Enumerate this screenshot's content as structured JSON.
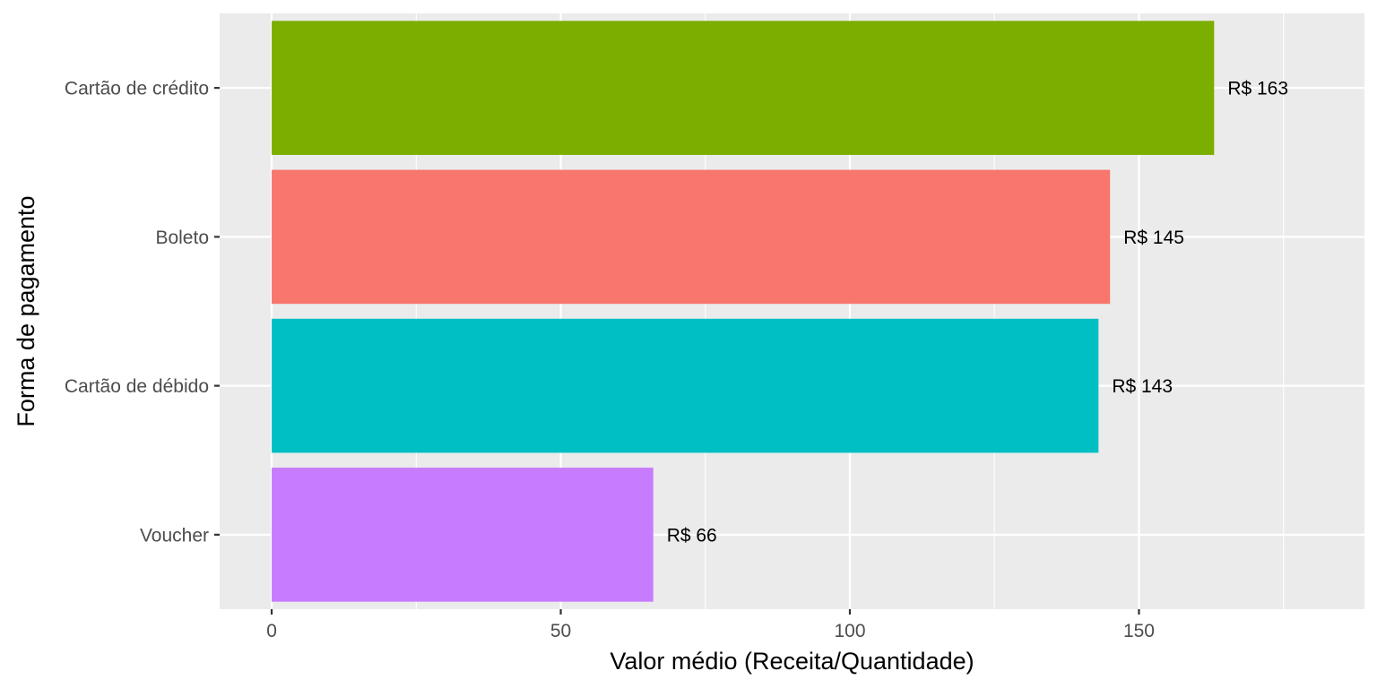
{
  "chart_data": {
    "type": "bar",
    "orientation": "horizontal",
    "categories": [
      "Cartão de crédito",
      "Boleto",
      "Cartão de débido",
      "Voucher"
    ],
    "values": [
      163,
      145,
      143,
      66
    ],
    "data_labels": [
      "R$ 163",
      "R$ 145",
      "R$ 143",
      "R$ 66"
    ],
    "colors": [
      "#7CAE00",
      "#F8766D",
      "#00BFC4",
      "#C77CFF"
    ],
    "xlabel": "Valor médio (Receita/Quantidade)",
    "ylabel": "Forma de pagamento",
    "xlim": [
      -9,
      189
    ],
    "x_ticks": [
      0,
      50,
      100,
      150
    ],
    "x_tick_labels": [
      "0",
      "50",
      "100",
      "150"
    ],
    "grid": true,
    "legend": "none",
    "panel_background": "#EBEBEB",
    "grid_color": "#FFFFFF"
  }
}
